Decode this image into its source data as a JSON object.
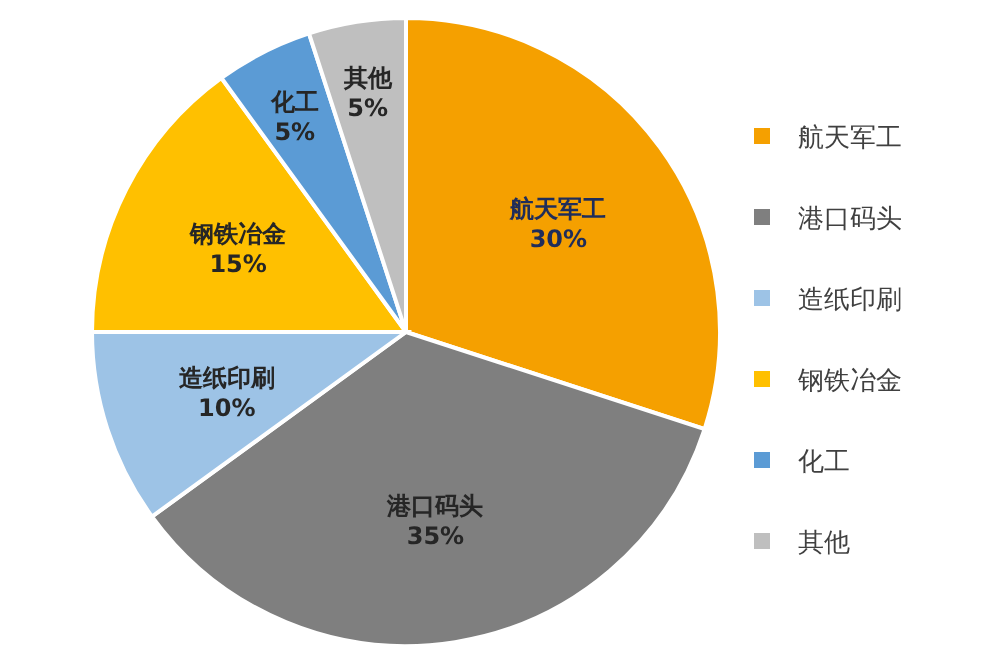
{
  "chart_data": {
    "type": "pie",
    "categories": [
      "航天军工",
      "港口码头",
      "造纸印刷",
      "钢铁冶金",
      "化工",
      "其他"
    ],
    "values": [
      30,
      35,
      10,
      15,
      5,
      5
    ],
    "colors": [
      "#f5a000",
      "#7f7f7f",
      "#9dc3e6",
      "#ffc000",
      "#5b9bd5",
      "#bfbfbf"
    ],
    "value_labels": [
      "30%",
      "35%",
      "10%",
      "15%",
      "5%",
      "5%"
    ],
    "legend": "right"
  }
}
